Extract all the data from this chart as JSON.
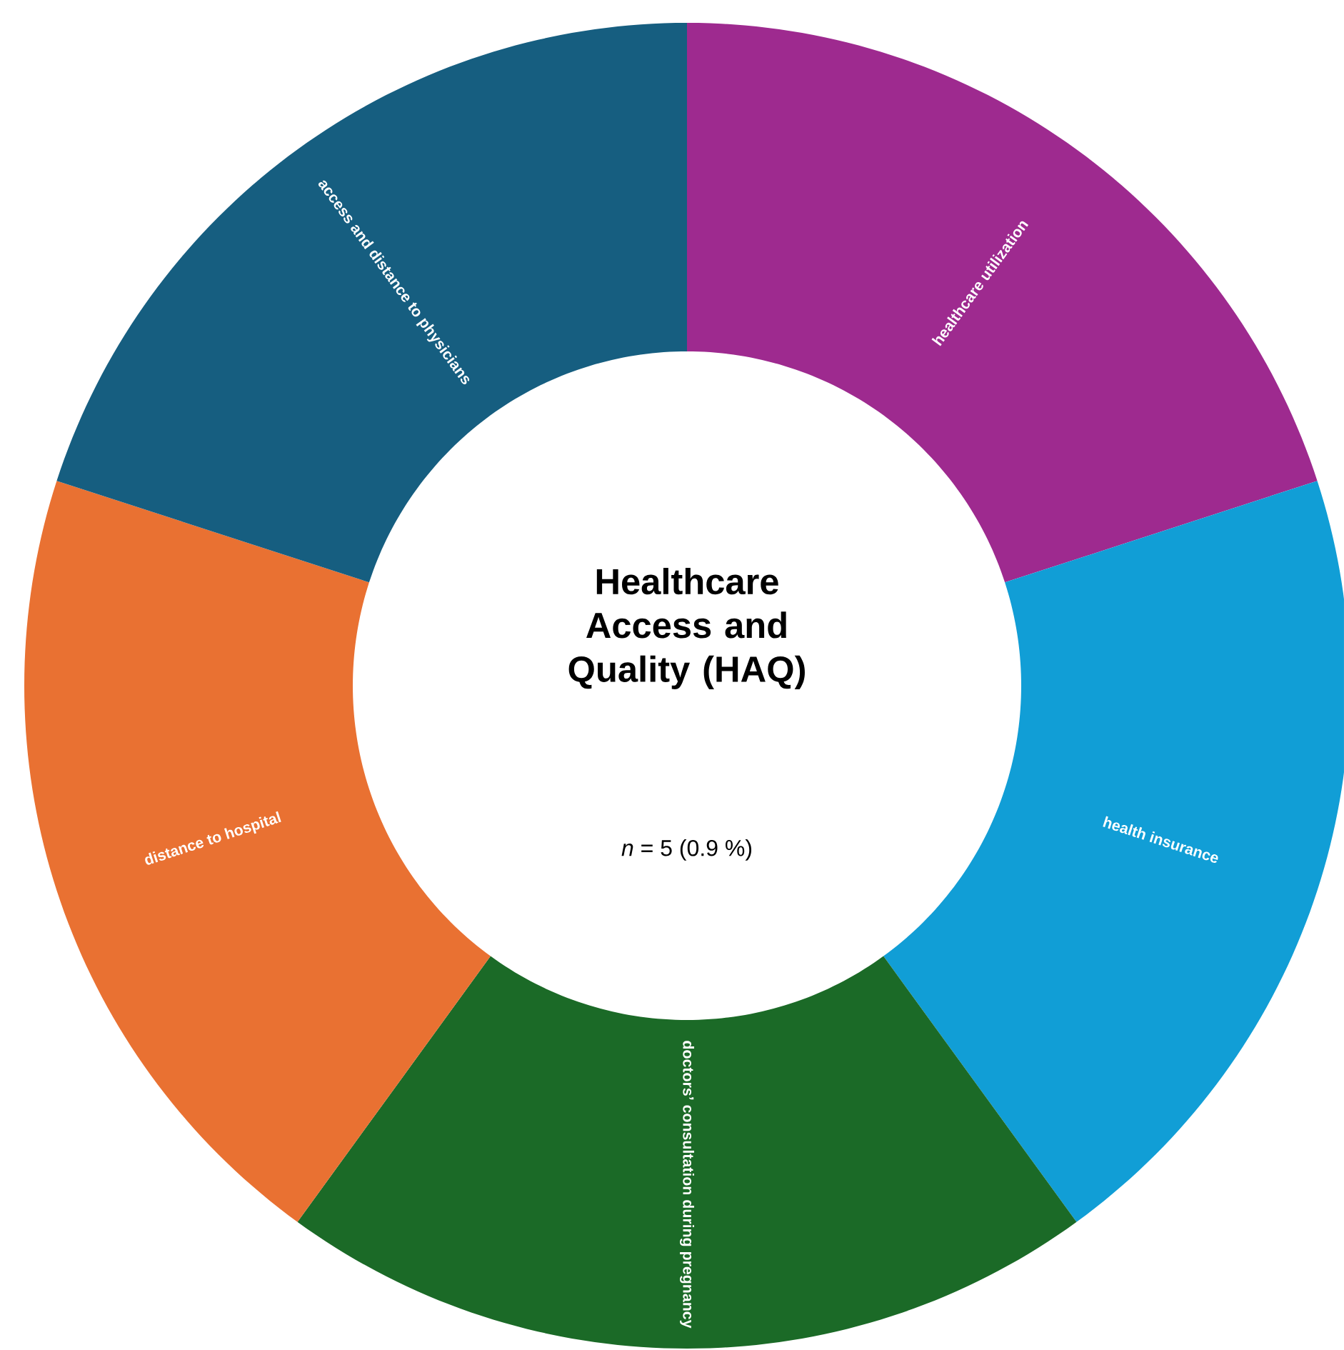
{
  "chart_data": {
    "type": "donut",
    "title": "Healthcare Access and Quality (HAQ)",
    "subtitle": "*n* = 5 (0.9 %)",
    "categories": [
      "healthcare utilization",
      "health insurance",
      "doctors’ consultation during pregnancy",
      "distance to hospital",
      "access and distance to physicians"
    ],
    "values": [
      20,
      20,
      20,
      20,
      20
    ],
    "colors": [
      "#9e2a8f",
      "#119ed6",
      "#1b6a27",
      "#e97132",
      "#165e80"
    ]
  }
}
